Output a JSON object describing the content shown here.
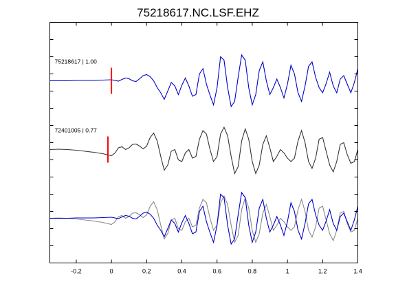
{
  "chart_data": {
    "type": "line",
    "title": "75218617.NC.LSF.EHZ",
    "xlabel": "",
    "ylabel": "",
    "xlim": [
      -0.35,
      1.4
    ],
    "ylim": [
      0,
      7
    ],
    "x_ticks": [
      -0.2,
      0,
      0.2,
      0.4,
      0.6,
      0.8,
      1,
      1.2,
      1.4
    ],
    "x_tick_labels": [
      "-0.2",
      "0",
      "0.2",
      "0.4",
      "0.6",
      "0.8",
      "1",
      "1.2",
      "1.4"
    ],
    "y_ticks": [
      0.5,
      1,
      1.5,
      2,
      2.5,
      3,
      3.5,
      4,
      4.5,
      5,
      5.5,
      6,
      6.5
    ],
    "grid": false,
    "legend": "none",
    "traces": [
      {
        "label": "75218617 | 1.00",
        "baseline": 5.3,
        "color": "#0000cc",
        "pick_x": 0.0,
        "pick_color": "#ff0000",
        "x": [
          -0.35,
          -0.3,
          -0.25,
          -0.2,
          -0.15,
          -0.1,
          -0.05,
          0,
          0.02,
          0.04,
          0.06,
          0.08,
          0.1,
          0.12,
          0.14,
          0.16,
          0.18,
          0.2,
          0.22,
          0.24,
          0.26,
          0.28,
          0.3,
          0.32,
          0.34,
          0.36,
          0.38,
          0.4,
          0.42,
          0.44,
          0.46,
          0.48,
          0.5,
          0.52,
          0.54,
          0.56,
          0.58,
          0.6,
          0.62,
          0.64,
          0.66,
          0.68,
          0.7,
          0.72,
          0.74,
          0.76,
          0.78,
          0.8,
          0.82,
          0.84,
          0.86,
          0.88,
          0.9,
          0.92,
          0.94,
          0.96,
          0.98,
          1,
          1.02,
          1.04,
          1.06,
          1.08,
          1.1,
          1.12,
          1.14,
          1.16,
          1.18,
          1.2,
          1.22,
          1.24,
          1.26,
          1.28,
          1.3,
          1.32,
          1.34,
          1.36,
          1.38,
          1.4
        ],
        "y": [
          5.3,
          5.3,
          5.3,
          5.31,
          5.31,
          5.31,
          5.32,
          5.33,
          5.31,
          5.29,
          5.34,
          5.38,
          5.36,
          5.3,
          5.28,
          5.36,
          5.45,
          5.48,
          5.42,
          5.3,
          5.1,
          4.95,
          4.76,
          5.0,
          5.25,
          5.15,
          4.9,
          5.17,
          5.38,
          5.15,
          4.85,
          4.9,
          5.5,
          5.65,
          5.2,
          4.88,
          4.6,
          5.1,
          6.0,
          5.9,
          5.1,
          4.55,
          4.7,
          5.4,
          6.05,
          5.9,
          5.1,
          4.6,
          4.9,
          5.6,
          5.85,
          5.3,
          4.9,
          5.1,
          5.35,
          5.1,
          4.8,
          5.2,
          5.75,
          5.5,
          4.95,
          4.7,
          5.15,
          5.72,
          5.85,
          5.4,
          5.1,
          4.95,
          5.22,
          5.55,
          5.15,
          4.95,
          5.35,
          5.45,
          5.2,
          4.95,
          5.25,
          5.65
        ]
      },
      {
        "label": "72401005 | 0.77",
        "baseline": 3.3,
        "color": "#333333",
        "pick_x": -0.02,
        "pick_color": "#ff0000",
        "x": [
          -0.35,
          -0.3,
          -0.25,
          -0.2,
          -0.15,
          -0.1,
          -0.05,
          0,
          0.02,
          0.04,
          0.06,
          0.08,
          0.1,
          0.12,
          0.14,
          0.16,
          0.18,
          0.2,
          0.22,
          0.24,
          0.26,
          0.28,
          0.3,
          0.32,
          0.34,
          0.36,
          0.38,
          0.4,
          0.42,
          0.44,
          0.46,
          0.48,
          0.5,
          0.52,
          0.54,
          0.56,
          0.58,
          0.6,
          0.62,
          0.64,
          0.66,
          0.68,
          0.7,
          0.72,
          0.74,
          0.76,
          0.78,
          0.8,
          0.82,
          0.84,
          0.86,
          0.88,
          0.9,
          0.92,
          0.94,
          0.96,
          0.98,
          1,
          1.02,
          1.04,
          1.06,
          1.08,
          1.1,
          1.12,
          1.14,
          1.16,
          1.18,
          1.2,
          1.22,
          1.24,
          1.26,
          1.28,
          1.3,
          1.32,
          1.34,
          1.36,
          1.38,
          1.4
        ],
        "y": [
          3.3,
          3.31,
          3.3,
          3.28,
          3.25,
          3.22,
          3.18,
          3.12,
          3.2,
          3.35,
          3.38,
          3.3,
          3.35,
          3.45,
          3.46,
          3.4,
          3.32,
          3.4,
          3.65,
          3.78,
          3.55,
          3.1,
          2.7,
          2.85,
          3.25,
          3.3,
          3.0,
          2.95,
          3.2,
          3.3,
          3.05,
          3.1,
          3.6,
          3.85,
          3.75,
          3.3,
          2.95,
          3.1,
          3.75,
          3.95,
          3.7,
          3.1,
          2.6,
          2.8,
          3.55,
          3.9,
          3.6,
          2.95,
          2.6,
          2.85,
          3.45,
          3.7,
          3.35,
          2.95,
          3.1,
          3.3,
          3.2,
          3.05,
          2.95,
          3.05,
          3.55,
          3.85,
          3.5,
          2.95,
          2.75,
          3.05,
          3.6,
          3.65,
          3.25,
          2.85,
          2.65,
          2.95,
          3.45,
          3.5,
          3.15,
          2.9,
          2.95,
          3.3
        ]
      },
      {
        "label": "",
        "baseline": 1.3,
        "color": "#0000cc",
        "overlay_color": "#888888",
        "x": [
          -0.35,
          -0.3,
          -0.25,
          -0.2,
          -0.15,
          -0.1,
          -0.05,
          0,
          0.02,
          0.04,
          0.06,
          0.08,
          0.1,
          0.12,
          0.14,
          0.16,
          0.18,
          0.2,
          0.22,
          0.24,
          0.26,
          0.28,
          0.3,
          0.32,
          0.34,
          0.36,
          0.38,
          0.4,
          0.42,
          0.44,
          0.46,
          0.48,
          0.5,
          0.52,
          0.54,
          0.56,
          0.58,
          0.6,
          0.62,
          0.64,
          0.66,
          0.68,
          0.7,
          0.72,
          0.74,
          0.76,
          0.78,
          0.8,
          0.82,
          0.84,
          0.86,
          0.88,
          0.9,
          0.92,
          0.94,
          0.96,
          0.98,
          1,
          1.02,
          1.04,
          1.06,
          1.08,
          1.1,
          1.12,
          1.14,
          1.16,
          1.18,
          1.2,
          1.22,
          1.24,
          1.26,
          1.28,
          1.3,
          1.32,
          1.34,
          1.36,
          1.38,
          1.4
        ],
        "y_blue": [
          1.3,
          1.3,
          1.3,
          1.31,
          1.31,
          1.31,
          1.32,
          1.33,
          1.31,
          1.29,
          1.34,
          1.38,
          1.36,
          1.3,
          1.28,
          1.36,
          1.45,
          1.48,
          1.42,
          1.3,
          1.1,
          0.95,
          0.76,
          1.0,
          1.25,
          1.15,
          0.9,
          1.17,
          1.38,
          1.15,
          0.85,
          0.9,
          1.5,
          1.65,
          1.2,
          0.88,
          0.6,
          1.1,
          2.0,
          1.9,
          1.1,
          0.55,
          0.7,
          1.4,
          2.05,
          1.9,
          1.1,
          0.6,
          0.9,
          1.6,
          1.85,
          1.3,
          0.9,
          1.1,
          1.35,
          1.1,
          0.8,
          1.2,
          1.75,
          1.5,
          0.95,
          0.7,
          1.15,
          1.72,
          1.85,
          1.4,
          1.1,
          0.95,
          1.22,
          1.55,
          1.15,
          0.95,
          1.35,
          1.45,
          1.2,
          0.95,
          1.25,
          1.65
        ],
        "y_gray": [
          1.3,
          1.31,
          1.3,
          1.28,
          1.25,
          1.22,
          1.18,
          1.12,
          1.2,
          1.35,
          1.38,
          1.3,
          1.35,
          1.45,
          1.46,
          1.4,
          1.32,
          1.4,
          1.65,
          1.78,
          1.55,
          1.1,
          0.7,
          0.85,
          1.25,
          1.3,
          1.0,
          0.95,
          1.2,
          1.3,
          1.05,
          1.1,
          1.6,
          1.85,
          1.75,
          1.3,
          0.95,
          1.1,
          1.75,
          1.95,
          1.7,
          1.1,
          0.6,
          0.8,
          1.55,
          1.9,
          1.6,
          0.95,
          0.6,
          0.85,
          1.45,
          1.7,
          1.35,
          0.95,
          1.1,
          1.3,
          1.2,
          1.05,
          0.95,
          1.05,
          1.55,
          1.85,
          1.5,
          0.95,
          0.75,
          1.05,
          1.6,
          1.65,
          1.25,
          0.85,
          0.65,
          0.95,
          1.45,
          1.5,
          1.15,
          0.9,
          0.95,
          1.3
        ]
      }
    ]
  }
}
